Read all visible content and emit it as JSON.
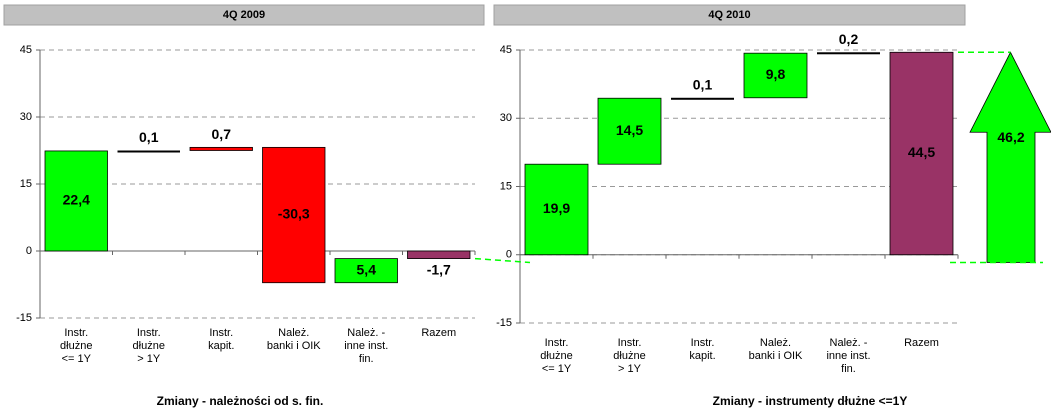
{
  "chart_data": [
    {
      "type": "waterfall",
      "title": "4Q 2009",
      "caption": "Zmiany - należności od s. fin.",
      "categories": [
        "Instr.\ndłużne\n<= 1Y",
        "Instr.\ndłużne\n> 1Y",
        "Instr.\nkapit.",
        "Należ.\nbanki i OIK",
        "Należ. -\ninne inst.\nfin.",
        "Razem"
      ],
      "values": [
        22.4,
        0.1,
        0.7,
        -30.3,
        5.4,
        -1.7
      ],
      "value_labels": [
        "22,4",
        "0,1",
        "0,7",
        "-30,3",
        "5,4",
        "-1,7"
      ],
      "colors": [
        "#00ff00",
        "#000000",
        "#ff0000",
        "#ff0000",
        "#00ff00",
        "#993366"
      ],
      "ylim": [
        -15,
        45
      ],
      "yticks": [
        -15,
        0,
        15,
        30,
        45
      ],
      "grid": true
    },
    {
      "type": "waterfall",
      "title": "4Q 2010",
      "caption": "Zmiany - instrumenty dłużne <=1Y",
      "categories": [
        "Instr.\ndłużne\n<= 1Y",
        "Instr.\ndłużne\n> 1Y",
        "Instr.\nkapit.",
        "Należ.\nbanki i OIK",
        "Należ. -\ninne inst.\nfin.",
        "Razem"
      ],
      "values": [
        19.9,
        14.5,
        0.1,
        9.8,
        0.2,
        44.5
      ],
      "value_labels": [
        "19,9",
        "14,5",
        "0,1",
        "9,8",
        "0,2",
        "44,5"
      ],
      "colors": [
        "#00ff00",
        "#00ff00",
        "#000000",
        "#00ff00",
        "#000000",
        "#993366"
      ],
      "ylim": [
        -15,
        45
      ],
      "yticks": [
        -15,
        0,
        15,
        30,
        45
      ],
      "grid": true,
      "arrow": {
        "value": 46.2,
        "label": "46,2",
        "color": "#00ff00"
      }
    }
  ]
}
